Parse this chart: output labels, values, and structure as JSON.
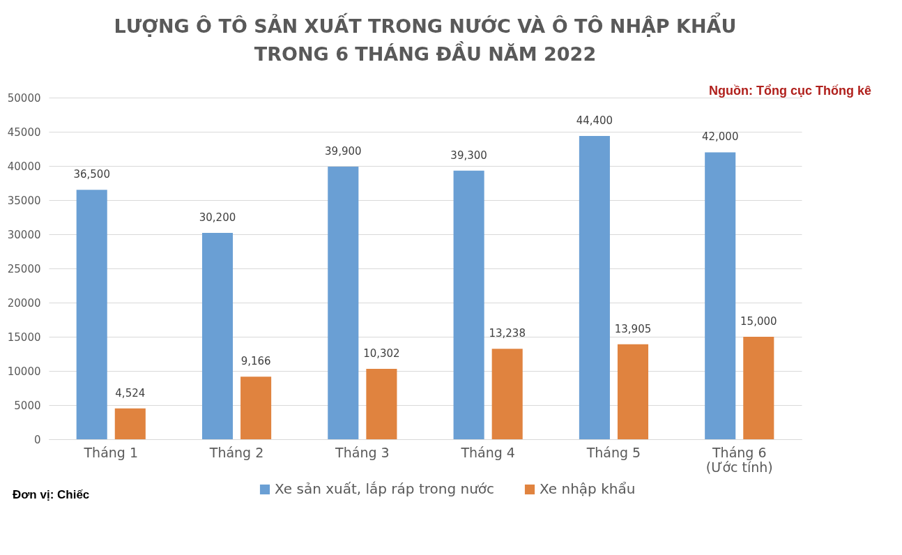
{
  "chart_data": {
    "type": "bar",
    "title": "LƯỢNG Ô TÔ SẢN XUẤT TRONG NƯỚC VÀ Ô TÔ NHẬP KHẨU\nTRONG 6 THÁNG ĐẦU NĂM 2022",
    "categories": [
      "Tháng 1",
      "Tháng 2",
      "Tháng 3",
      "Tháng 4",
      "Tháng 5",
      "Tháng 6\n(Ước tính)"
    ],
    "series": [
      {
        "name": "Xe sản xuất, lắp ráp trong nước",
        "color": "#6a9fd4",
        "values": [
          36500,
          30200,
          39900,
          39300,
          44400,
          42000
        ],
        "value_labels": [
          "36,500",
          "30,200",
          "39,900",
          "39,300",
          "44,400",
          "42,000"
        ]
      },
      {
        "name": "Xe nhập khẩu",
        "color": "#e0833f",
        "values": [
          4524,
          9166,
          10302,
          13238,
          13905,
          15000
        ],
        "value_labels": [
          "4,524",
          "9,166",
          "10,302",
          "13,238",
          "13,905",
          "15,000"
        ]
      }
    ],
    "ylim": [
      0,
      50000
    ],
    "yticks": [
      0,
      5000,
      10000,
      15000,
      20000,
      25000,
      30000,
      35000,
      40000,
      45000,
      50000
    ],
    "grid": "y",
    "legend": "bottom",
    "annotations": [
      "Nguồn: Tổng cục Thống kê",
      "Đơn vị: Chiếc"
    ]
  }
}
